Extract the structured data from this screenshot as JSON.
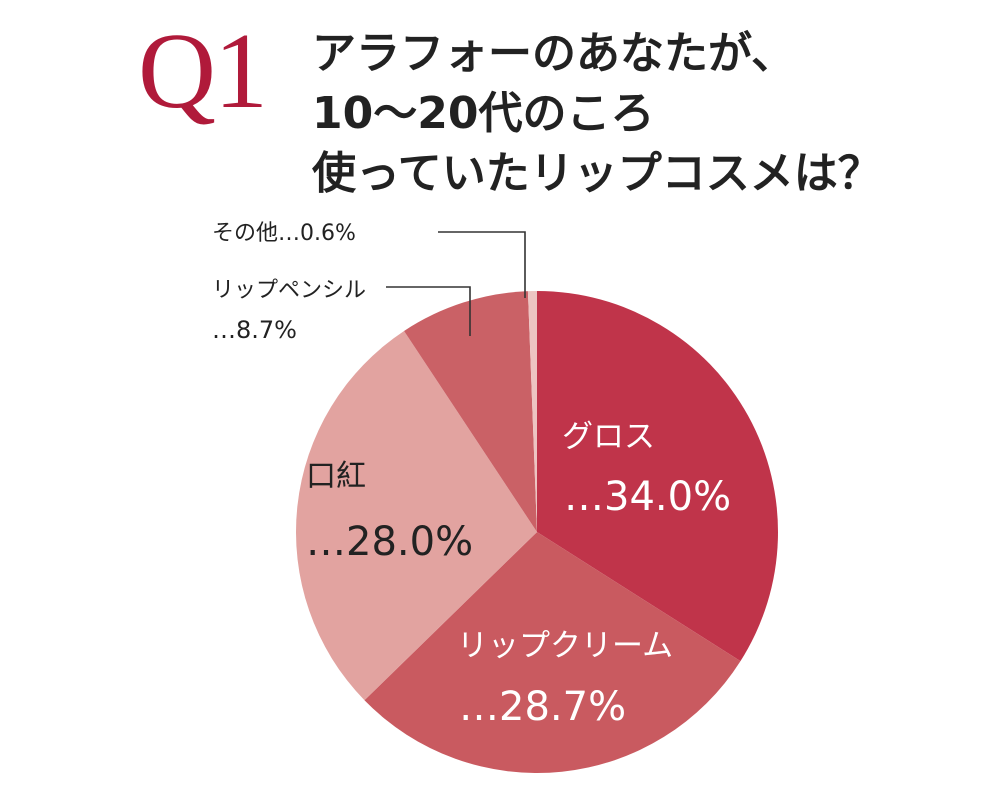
{
  "header": {
    "q_label": "Q1",
    "question_lines": [
      "アラフォーのあなたが、",
      "10〜20代のころ",
      "使っていたリップコスメは？"
    ]
  },
  "colors": {
    "accent": "#b01a3a",
    "leader_line": "#333333",
    "label_dark": "#222222",
    "label_light": "#ffffff"
  },
  "chart_data": {
    "type": "pie",
    "title": "",
    "start_angle_deg": 0,
    "direction": "clockwise",
    "slices": [
      {
        "label": "グロス",
        "value_text": "…34.0%",
        "value": 34.0,
        "color": "#c0344a",
        "label_color": "light"
      },
      {
        "label": "リップクリーム",
        "value_text": "…28.7%",
        "value": 28.7,
        "color": "#c95a60",
        "label_color": "light"
      },
      {
        "label": "口紅",
        "value_text": "…28.0%",
        "value": 28.0,
        "color": "#e2a3a0",
        "label_color": "dark"
      },
      {
        "label": "リップペンシル",
        "value_text": "…8.7%",
        "value": 8.7,
        "color": "#ca6166",
        "label_color": "dark"
      },
      {
        "label": "その他",
        "value_text": "…0.6%",
        "value": 0.6,
        "color": "#edc4c2",
        "label_color": "dark"
      }
    ]
  }
}
